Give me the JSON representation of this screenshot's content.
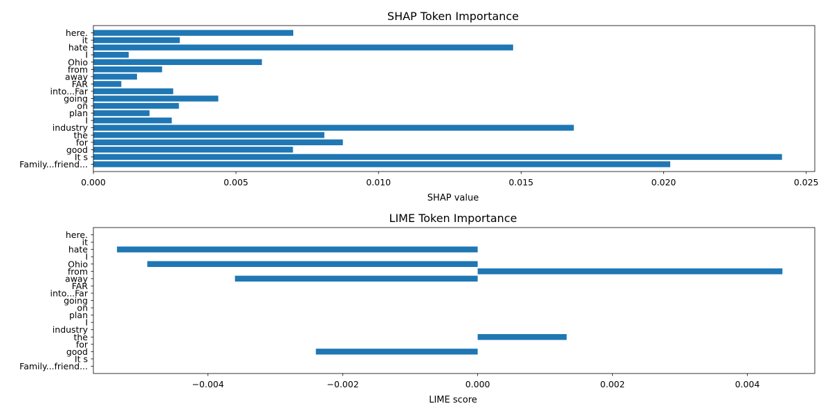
{
  "chart_data": [
    {
      "type": "bar",
      "orientation": "horizontal",
      "title": "SHAP Token Importance",
      "xlabel": "SHAP value",
      "ylabel": "",
      "xlim": [
        0,
        0.0253
      ],
      "xticks": [
        0.0,
        0.005,
        0.01,
        0.015,
        0.02,
        0.025
      ],
      "xtick_labels": [
        "0.000",
        "0.005",
        "0.010",
        "0.015",
        "0.020",
        "0.025"
      ],
      "categories": [
        "here.",
        "it",
        "hate",
        "I",
        "Ohio",
        "from",
        "away",
        "FAR",
        "into...Far",
        "going",
        "on",
        "plan",
        "I",
        "industry",
        "the",
        "for",
        "good",
        "It s",
        "Family...friend..."
      ],
      "values": [
        0.00701,
        0.00303,
        0.01472,
        0.00124,
        0.00591,
        0.00241,
        0.00153,
        0.00098,
        0.0028,
        0.00438,
        0.003,
        0.00197,
        0.00275,
        0.01685,
        0.0081,
        0.00875,
        0.007,
        0.02415,
        0.02023
      ],
      "grid": false,
      "color": "#1f77b4"
    },
    {
      "type": "bar",
      "orientation": "horizontal",
      "title": "LIME Token Importance",
      "xlabel": "LIME score",
      "ylabel": "",
      "xlim": [
        -0.0057,
        0.005
      ],
      "xticks": [
        -0.004,
        -0.002,
        0.0,
        0.002,
        0.004
      ],
      "xtick_labels": [
        "−0.004",
        "−0.002",
        "0.000",
        "0.002",
        "0.004"
      ],
      "categories": [
        "here.",
        "it",
        "hate",
        "I",
        "Ohio",
        "from",
        "away",
        "FAR",
        "into...Far",
        "going",
        "on",
        "plan",
        "I",
        "industry",
        "the",
        "for",
        "good",
        "It s",
        "Family...friend..."
      ],
      "values": [
        0,
        0,
        -0.00535,
        0,
        -0.0049,
        0.00452,
        -0.0036,
        0,
        0,
        0,
        0,
        0,
        0,
        0,
        0.00132,
        0,
        -0.0024,
        0,
        0
      ],
      "grid": false,
      "color": "#1f77b4"
    }
  ]
}
